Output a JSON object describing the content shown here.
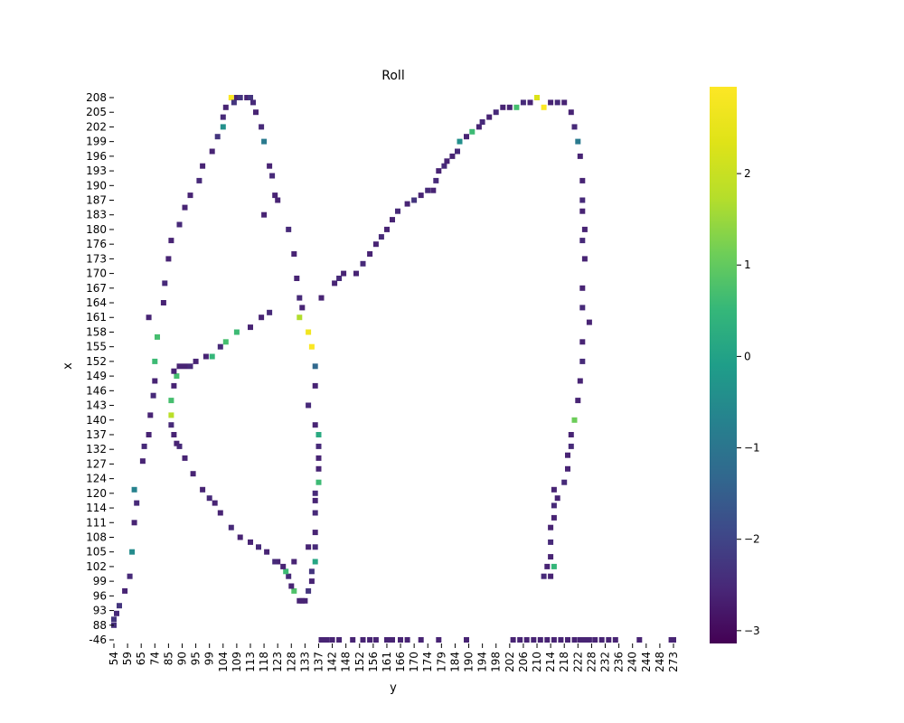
{
  "chart_data": {
    "type": "heatmap",
    "title": "Roll",
    "xlabel": "y",
    "ylabel": "x",
    "x_tick_labels": [
      "54",
      "59",
      "65",
      "74",
      "85",
      "90",
      "95",
      "99",
      "104",
      "109",
      "113",
      "118",
      "123",
      "128",
      "133",
      "137",
      "142",
      "148",
      "152",
      "156",
      "161",
      "166",
      "170",
      "174",
      "179",
      "184",
      "190",
      "194",
      "198",
      "202",
      "206",
      "210",
      "214",
      "218",
      "222",
      "228",
      "232",
      "236",
      "240",
      "244",
      "248",
      "273"
    ],
    "y_tick_labels": [
      "208",
      "205",
      "202",
      "199",
      "196",
      "193",
      "190",
      "187",
      "183",
      "180",
      "176",
      "173",
      "170",
      "167",
      "164",
      "161",
      "158",
      "155",
      "152",
      "149",
      "146",
      "143",
      "140",
      "137",
      "132",
      "127",
      "124",
      "120",
      "114",
      "111",
      "108",
      "105",
      "102",
      "99",
      "96",
      "93",
      "88",
      "-46"
    ],
    "colorbar": {
      "colormap": "viridis",
      "vmin": -3.14,
      "vmax": 2.95,
      "ticks": [
        "2",
        "1",
        "0",
        "−1",
        "−2",
        "−3"
      ],
      "tick_values": [
        2,
        1,
        0,
        -1,
        -2,
        -3
      ]
    },
    "grid": false,
    "points": [
      {
        "x": 54,
        "y": 88,
        "v": -2.4
      },
      {
        "x": 54,
        "y": 90,
        "v": -2.3
      },
      {
        "x": 55,
        "y": 92,
        "v": -2.5
      },
      {
        "x": 56,
        "y": 94,
        "v": -2.3
      },
      {
        "x": 58,
        "y": 97,
        "v": -2.6
      },
      {
        "x": 60,
        "y": 100,
        "v": -2.5
      },
      {
        "x": 61,
        "y": 105,
        "v": -0.5
      },
      {
        "x": 62,
        "y": 111,
        "v": -2.6
      },
      {
        "x": 63,
        "y": 116,
        "v": -2.5
      },
      {
        "x": 62,
        "y": 121,
        "v": -0.7
      },
      {
        "x": 66,
        "y": 128,
        "v": -2.6
      },
      {
        "x": 67,
        "y": 133,
        "v": -2.5
      },
      {
        "x": 70,
        "y": 137,
        "v": -2.6
      },
      {
        "x": 71,
        "y": 141,
        "v": -2.6
      },
      {
        "x": 73,
        "y": 145,
        "v": -2.5
      },
      {
        "x": 74,
        "y": 148,
        "v": -2.6
      },
      {
        "x": 74,
        "y": 152,
        "v": 0.6
      },
      {
        "x": 76,
        "y": 157,
        "v": 0.7
      },
      {
        "x": 70,
        "y": 161,
        "v": -2.6
      },
      {
        "x": 81,
        "y": 164,
        "v": -2.6
      },
      {
        "x": 82,
        "y": 168,
        "v": -2.5
      },
      {
        "x": 85,
        "y": 173,
        "v": -2.6
      },
      {
        "x": 86,
        "y": 177,
        "v": -2.6
      },
      {
        "x": 89,
        "y": 181,
        "v": -2.5
      },
      {
        "x": 91,
        "y": 185,
        "v": -2.6
      },
      {
        "x": 93,
        "y": 188,
        "v": -2.6
      },
      {
        "x": 96,
        "y": 191,
        "v": -2.5
      },
      {
        "x": 97,
        "y": 194,
        "v": -2.6
      },
      {
        "x": 100,
        "y": 197,
        "v": -2.6
      },
      {
        "x": 102,
        "y": 200,
        "v": -2.3
      },
      {
        "x": 104,
        "y": 202,
        "v": -0.4
      },
      {
        "x": 104,
        "y": 204,
        "v": -2.5
      },
      {
        "x": 105,
        "y": 206,
        "v": -2.6
      },
      {
        "x": 107,
        "y": 208,
        "v": 2.9
      },
      {
        "x": 108,
        "y": 207,
        "v": -2.3
      },
      {
        "x": 109,
        "y": 208,
        "v": -2.6
      },
      {
        "x": 110,
        "y": 209,
        "v": -2.3
      },
      {
        "x": 112,
        "y": 209,
        "v": -2.6
      },
      {
        "x": 113,
        "y": 208,
        "v": -2.3
      },
      {
        "x": 114,
        "y": 207,
        "v": -2.5
      },
      {
        "x": 115,
        "y": 205,
        "v": -2.6
      },
      {
        "x": 117,
        "y": 202,
        "v": -2.5
      },
      {
        "x": 118,
        "y": 199,
        "v": -0.9
      },
      {
        "x": 120,
        "y": 194,
        "v": -2.6
      },
      {
        "x": 121,
        "y": 192,
        "v": -2.5
      },
      {
        "x": 122,
        "y": 188,
        "v": -2.6
      },
      {
        "x": 123,
        "y": 187,
        "v": -2.6
      },
      {
        "x": 118,
        "y": 183,
        "v": -2.6
      },
      {
        "x": 127,
        "y": 180,
        "v": -2.5
      },
      {
        "x": 129,
        "y": 174,
        "v": -2.6
      },
      {
        "x": 130,
        "y": 169,
        "v": -2.6
      },
      {
        "x": 131,
        "y": 165,
        "v": -2.5
      },
      {
        "x": 132,
        "y": 163,
        "v": -2.6
      },
      {
        "x": 131,
        "y": 161,
        "v": 1.7
      },
      {
        "x": 134,
        "y": 158,
        "v": 2.7
      },
      {
        "x": 135,
        "y": 155,
        "v": 2.9
      },
      {
        "x": 136,
        "y": 151,
        "v": -1.3
      },
      {
        "x": 136,
        "y": 147,
        "v": -2.6
      },
      {
        "x": 134,
        "y": 143,
        "v": -2.5
      },
      {
        "x": 136,
        "y": 139,
        "v": -2.6
      },
      {
        "x": 137,
        "y": 137,
        "v": 0.2
      },
      {
        "x": 137,
        "y": 133,
        "v": -2.5
      },
      {
        "x": 137,
        "y": 129,
        "v": -2.6
      },
      {
        "x": 137,
        "y": 126,
        "v": -2.6
      },
      {
        "x": 137,
        "y": 123,
        "v": 0.6
      },
      {
        "x": 136,
        "y": 120,
        "v": -2.5
      },
      {
        "x": 136,
        "y": 117,
        "v": -2.6
      },
      {
        "x": 136,
        "y": 113,
        "v": -2.5
      },
      {
        "x": 136,
        "y": 109,
        "v": -2.6
      },
      {
        "x": 136,
        "y": 106,
        "v": -2.5
      },
      {
        "x": 134,
        "y": 106,
        "v": -2.6
      },
      {
        "x": 136,
        "y": 103,
        "v": 0.1
      },
      {
        "x": 135,
        "y": 101,
        "v": -2.3
      },
      {
        "x": 135,
        "y": 99,
        "v": -2.6
      },
      {
        "x": 134,
        "y": 97,
        "v": -2.3
      },
      {
        "x": 133,
        "y": 95,
        "v": -2.6
      },
      {
        "x": 132,
        "y": 95,
        "v": -2.6
      },
      {
        "x": 131,
        "y": 95,
        "v": -2.6
      },
      {
        "x": 129,
        "y": 97,
        "v": 0.8
      },
      {
        "x": 128,
        "y": 98,
        "v": -2.6
      },
      {
        "x": 127,
        "y": 100,
        "v": -2.5
      },
      {
        "x": 129,
        "y": 103,
        "v": -2.6
      },
      {
        "x": 126,
        "y": 101,
        "v": 0.6
      },
      {
        "x": 125,
        "y": 102,
        "v": -2.6
      },
      {
        "x": 123,
        "y": 103,
        "v": -2.6
      },
      {
        "x": 122,
        "y": 103,
        "v": -2.5
      },
      {
        "x": 119,
        "y": 105,
        "v": -2.6
      },
      {
        "x": 116,
        "y": 106,
        "v": -2.5
      },
      {
        "x": 113,
        "y": 107,
        "v": -2.6
      },
      {
        "x": 110,
        "y": 108,
        "v": -2.6
      },
      {
        "x": 107,
        "y": 110,
        "v": -2.5
      },
      {
        "x": 103,
        "y": 113,
        "v": -2.6
      },
      {
        "x": 101,
        "y": 116,
        "v": -2.6
      },
      {
        "x": 99,
        "y": 118,
        "v": -2.5
      },
      {
        "x": 97,
        "y": 121,
        "v": -2.6
      },
      {
        "x": 94,
        "y": 125,
        "v": -2.6
      },
      {
        "x": 91,
        "y": 129,
        "v": -2.6
      },
      {
        "x": 89,
        "y": 133,
        "v": -2.5
      },
      {
        "x": 88,
        "y": 134,
        "v": -2.6
      },
      {
        "x": 87,
        "y": 137,
        "v": -2.6
      },
      {
        "x": 86,
        "y": 139,
        "v": -2.5
      },
      {
        "x": 86,
        "y": 141,
        "v": 1.8
      },
      {
        "x": 86,
        "y": 144,
        "v": 0.7
      },
      {
        "x": 87,
        "y": 147,
        "v": -2.6
      },
      {
        "x": 88,
        "y": 149,
        "v": 0.7
      },
      {
        "x": 87,
        "y": 150,
        "v": -2.6
      },
      {
        "x": 89,
        "y": 151,
        "v": -2.6
      },
      {
        "x": 91,
        "y": 151,
        "v": -2.6
      },
      {
        "x": 93,
        "y": 151,
        "v": -2.5
      },
      {
        "x": 95,
        "y": 152,
        "v": -2.6
      },
      {
        "x": 98,
        "y": 153,
        "v": -2.6
      },
      {
        "x": 100,
        "y": 153,
        "v": 0.5
      },
      {
        "x": 103,
        "y": 155,
        "v": -2.5
      },
      {
        "x": 105,
        "y": 156,
        "v": 0.7
      },
      {
        "x": 109,
        "y": 158,
        "v": 0.6
      },
      {
        "x": 113,
        "y": 159,
        "v": -2.6
      },
      {
        "x": 117,
        "y": 161,
        "v": -2.6
      },
      {
        "x": 120,
        "y": 162,
        "v": -2.5
      },
      {
        "x": 138,
        "y": 165,
        "v": -2.6
      },
      {
        "x": 143,
        "y": 168,
        "v": -2.6
      },
      {
        "x": 145,
        "y": 169,
        "v": -2.5
      },
      {
        "x": 147,
        "y": 170,
        "v": -2.6
      },
      {
        "x": 151,
        "y": 170,
        "v": -2.6
      },
      {
        "x": 153,
        "y": 172,
        "v": -2.5
      },
      {
        "x": 155,
        "y": 174,
        "v": -2.6
      },
      {
        "x": 157,
        "y": 176,
        "v": -2.6
      },
      {
        "x": 159,
        "y": 178,
        "v": -2.5
      },
      {
        "x": 161,
        "y": 180,
        "v": -2.6
      },
      {
        "x": 163,
        "y": 182,
        "v": -2.6
      },
      {
        "x": 165,
        "y": 184,
        "v": -2.5
      },
      {
        "x": 168,
        "y": 186,
        "v": -2.6
      },
      {
        "x": 170,
        "y": 187,
        "v": -2.3
      },
      {
        "x": 172,
        "y": 188,
        "v": -2.6
      },
      {
        "x": 174,
        "y": 189,
        "v": -2.5
      },
      {
        "x": 176,
        "y": 189,
        "v": -2.6
      },
      {
        "x": 177,
        "y": 191,
        "v": -2.5
      },
      {
        "x": 178,
        "y": 193,
        "v": -2.6
      },
      {
        "x": 180,
        "y": 194,
        "v": -2.5
      },
      {
        "x": 181,
        "y": 195,
        "v": -2.6
      },
      {
        "x": 183,
        "y": 196,
        "v": -2.6
      },
      {
        "x": 185,
        "y": 197,
        "v": -2.5
      },
      {
        "x": 186,
        "y": 199,
        "v": -0.4
      },
      {
        "x": 189,
        "y": 200,
        "v": -2.6
      },
      {
        "x": 191,
        "y": 201,
        "v": 0.6
      },
      {
        "x": 193,
        "y": 202,
        "v": -2.6
      },
      {
        "x": 194,
        "y": 203,
        "v": -2.5
      },
      {
        "x": 196,
        "y": 204,
        "v": -2.6
      },
      {
        "x": 198,
        "y": 205,
        "v": -2.5
      },
      {
        "x": 200,
        "y": 206,
        "v": -2.6
      },
      {
        "x": 202,
        "y": 206,
        "v": -2.6
      },
      {
        "x": 204,
        "y": 206,
        "v": 0.7
      },
      {
        "x": 206,
        "y": 207,
        "v": -2.5
      },
      {
        "x": 208,
        "y": 207,
        "v": -2.6
      },
      {
        "x": 210,
        "y": 208,
        "v": 2.3
      },
      {
        "x": 212,
        "y": 206,
        "v": 2.9
      },
      {
        "x": 214,
        "y": 207,
        "v": -2.6
      },
      {
        "x": 216,
        "y": 207,
        "v": -2.5
      },
      {
        "x": 218,
        "y": 207,
        "v": -2.6
      },
      {
        "x": 220,
        "y": 205,
        "v": -2.6
      },
      {
        "x": 221,
        "y": 202,
        "v": -2.5
      },
      {
        "x": 222,
        "y": 199,
        "v": -0.9
      },
      {
        "x": 223,
        "y": 196,
        "v": -2.6
      },
      {
        "x": 224,
        "y": 191,
        "v": -2.6
      },
      {
        "x": 224,
        "y": 187,
        "v": -2.5
      },
      {
        "x": 224,
        "y": 184,
        "v": -2.6
      },
      {
        "x": 225,
        "y": 180,
        "v": -2.6
      },
      {
        "x": 224,
        "y": 177,
        "v": -2.5
      },
      {
        "x": 225,
        "y": 173,
        "v": -2.6
      },
      {
        "x": 224,
        "y": 167,
        "v": -2.6
      },
      {
        "x": 224,
        "y": 163,
        "v": -2.5
      },
      {
        "x": 227,
        "y": 160,
        "v": -2.6
      },
      {
        "x": 224,
        "y": 156,
        "v": -2.6
      },
      {
        "x": 224,
        "y": 152,
        "v": -2.5
      },
      {
        "x": 223,
        "y": 148,
        "v": -2.6
      },
      {
        "x": 222,
        "y": 144,
        "v": -2.6
      },
      {
        "x": 221,
        "y": 140,
        "v": 1.1
      },
      {
        "x": 220,
        "y": 137,
        "v": -2.6
      },
      {
        "x": 220,
        "y": 133,
        "v": -2.5
      },
      {
        "x": 219,
        "y": 130,
        "v": -2.6
      },
      {
        "x": 219,
        "y": 126,
        "v": -2.6
      },
      {
        "x": 218,
        "y": 123,
        "v": -2.5
      },
      {
        "x": 215,
        "y": 121,
        "v": -2.6
      },
      {
        "x": 216,
        "y": 118,
        "v": -2.6
      },
      {
        "x": 215,
        "y": 115,
        "v": -2.5
      },
      {
        "x": 215,
        "y": 112,
        "v": -2.6
      },
      {
        "x": 214,
        "y": 110,
        "v": -2.6
      },
      {
        "x": 214,
        "y": 107,
        "v": -2.5
      },
      {
        "x": 214,
        "y": 104,
        "v": -2.6
      },
      {
        "x": 213,
        "y": 102,
        "v": -2.6
      },
      {
        "x": 215,
        "y": 102,
        "v": 0.5
      },
      {
        "x": 212,
        "y": 100,
        "v": -2.5
      },
      {
        "x": 214,
        "y": 100,
        "v": -2.6
      }
    ]
  }
}
